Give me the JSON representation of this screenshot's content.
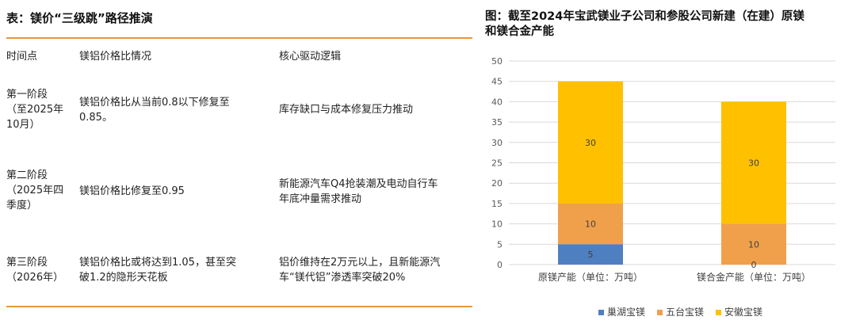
{
  "table": {
    "title": "表：镁价“三级跳”路径推演",
    "headers": [
      "时间点",
      "镁铝价格比情况",
      "核心驱动逻辑"
    ],
    "rows": [
      {
        "time": "第一阶段\n（至2025年\n10月）",
        "ratio": "镁铝价格比从当前0.8以下修复至\n0.85。",
        "logic": "库存缺口与成本修复压力推动"
      },
      {
        "time": "第二阶段\n（2025年四\n季度）",
        "ratio": "镁铝价格比修复至0.95",
        "logic": "新能源汽车Q4抢装潮及电动自行车\n年底冲量需求推动"
      },
      {
        "time": "第三阶段\n（2026年）",
        "ratio": "镁铝价格比或将达到1.05，甚至突\n破1.2的隐形天花板",
        "logic": "铝价维持在2万元以上，且新能源汽\n车“镁代铝”渗透率突破20%"
      }
    ]
  },
  "chart": {
    "title": "图：截至2024年宝武镁业子公司和参股公司新建（在建）原镁\n和镁合金产能"
  },
  "chart_data": {
    "type": "bar",
    "stacked": true,
    "categories": [
      "原镁产能（单位：万吨）",
      "镁合金产能（单位：万吨）"
    ],
    "series": [
      {
        "name": "巢湖宝镁",
        "values": [
          5,
          0
        ],
        "color": "#4e7fc1"
      },
      {
        "name": "五台宝镁",
        "values": [
          10,
          10
        ],
        "color": "#f0a04b"
      },
      {
        "name": "安徽宝镁",
        "values": [
          30,
          30
        ],
        "color": "#ffc000"
      }
    ],
    "value_labels": [
      [
        "5",
        ""
      ],
      [
        "10",
        "10"
      ],
      [
        "30",
        "30"
      ]
    ],
    "extra_labels": [
      {
        "category": 1,
        "text": "0"
      }
    ],
    "ylim": [
      0,
      50
    ],
    "yticks": [
      0,
      5,
      10,
      15,
      20,
      25,
      30,
      35,
      40,
      45,
      50
    ],
    "grid": true,
    "legend": "bottom"
  }
}
